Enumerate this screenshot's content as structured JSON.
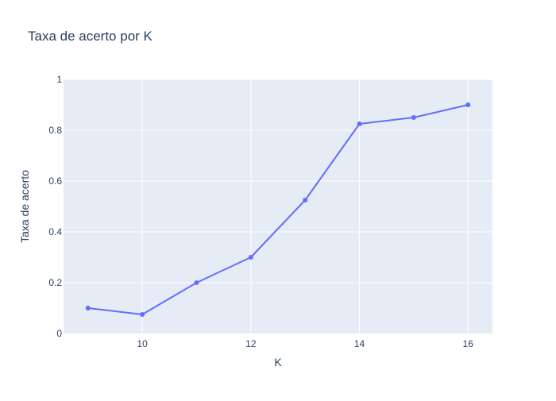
{
  "chart_data": {
    "type": "line",
    "title": "Taxa de acerto por K",
    "xlabel": "K",
    "ylabel": "Taxa de acerto",
    "xlim": [
      8.55,
      16.45
    ],
    "ylim": [
      0,
      1
    ],
    "x_ticks": [
      10,
      12,
      14,
      16
    ],
    "y_ticks": [
      0,
      0.2,
      0.4,
      0.6,
      0.8,
      1
    ],
    "x_tick_labels": [
      "10",
      "12",
      "14",
      "16"
    ],
    "y_tick_labels": [
      "0",
      "0.2",
      "0.4",
      "0.6",
      "0.8",
      "1"
    ],
    "grid": true,
    "legend": "none",
    "series": [
      {
        "x": [
          9,
          10,
          11,
          12,
          13,
          14,
          15,
          16
        ],
        "y": [
          0.1,
          0.075,
          0.2,
          0.3,
          0.525,
          0.825,
          0.85,
          0.9
        ],
        "mode": "lines+markers"
      }
    ]
  },
  "colors": {
    "plot_background": "#e5ecf6",
    "gridline": "#ffffff",
    "series_line": "#636efa",
    "text": "#2a3f5f"
  }
}
